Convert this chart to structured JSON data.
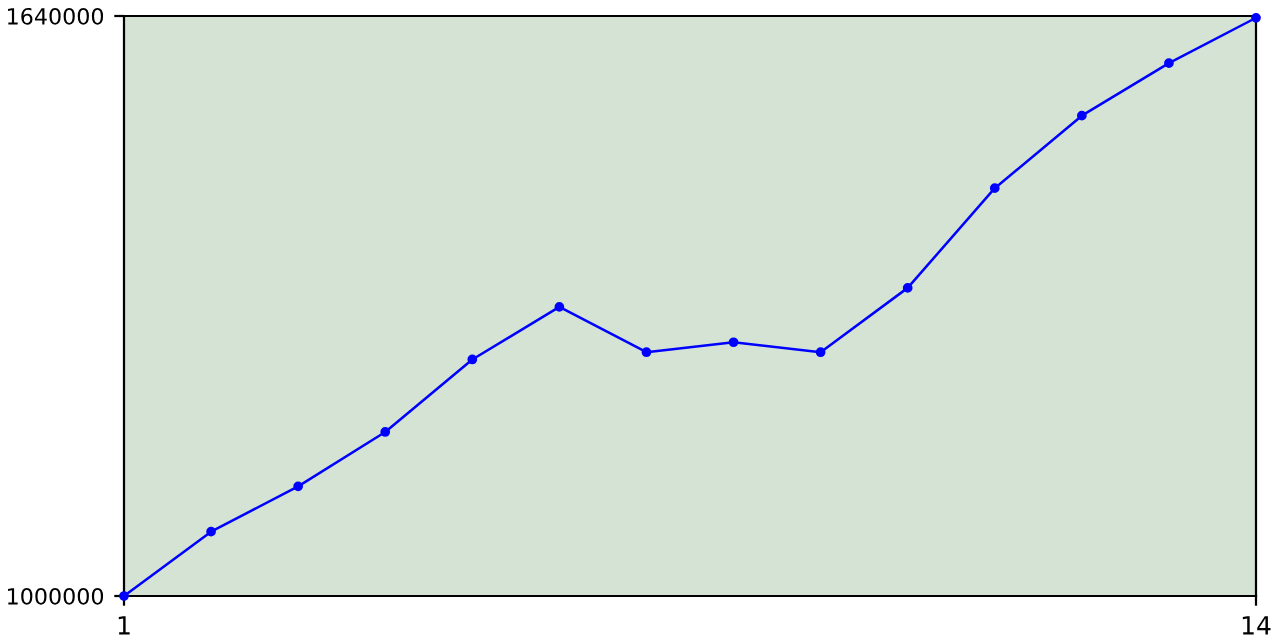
{
  "chart_data": {
    "type": "line",
    "x": [
      1,
      2,
      3,
      4,
      5,
      6,
      7,
      8,
      9,
      10,
      11,
      12,
      13,
      14
    ],
    "series": [
      {
        "color": "#0000ff",
        "values": [
          1000000,
          1071000,
          1121000,
          1181000,
          1261000,
          1319000,
          1269000,
          1280000,
          1269000,
          1340000,
          1450000,
          1530000,
          1588000,
          1638000
        ]
      }
    ],
    "xlim": [
      1,
      14
    ],
    "xticks": [
      1,
      14
    ],
    "ylim": [
      1000000,
      1640000
    ],
    "yticks": [
      1000000,
      1640000
    ],
    "marker": "circle",
    "line_style": "solid",
    "grid": false,
    "legend": false
  }
}
